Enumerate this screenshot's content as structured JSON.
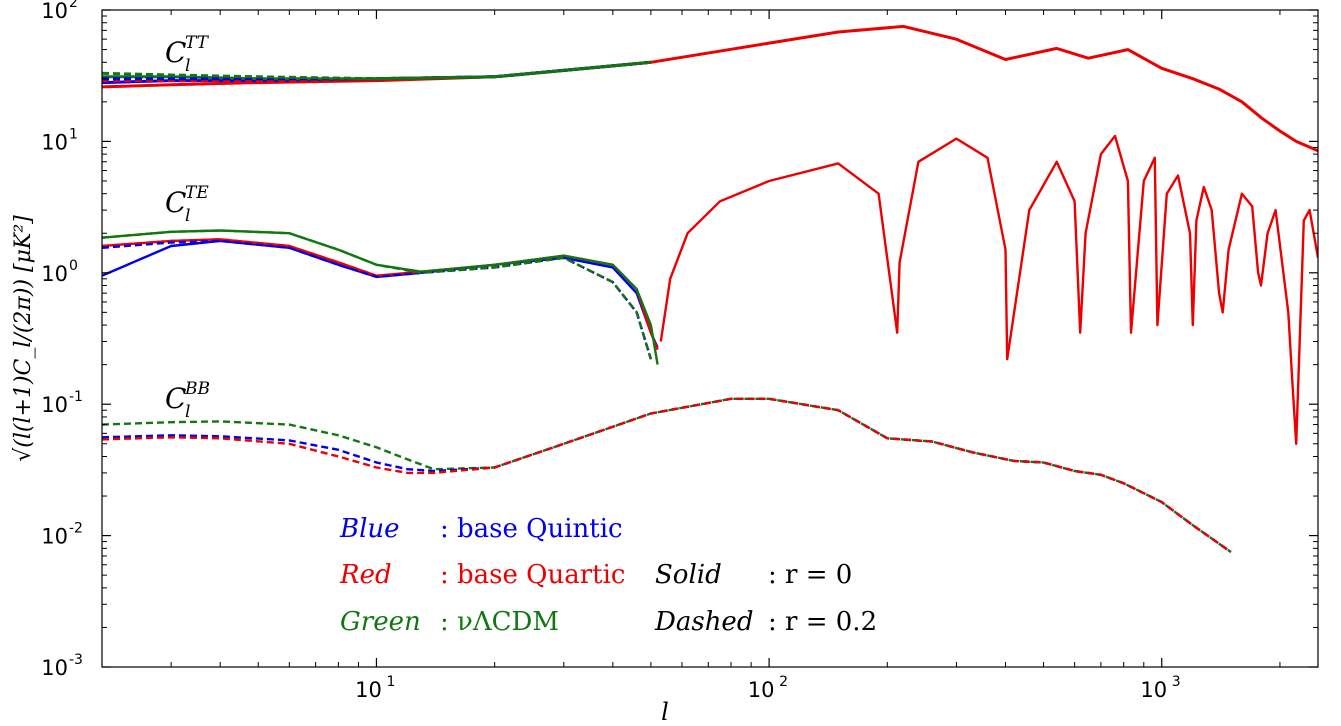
{
  "chart_data": {
    "type": "line",
    "xlabel": "l",
    "ylabel": "√(l(l+1)C_l/(2π)) [μK²]",
    "xscale": "log",
    "yscale": "log",
    "xlim": [
      2,
      2500
    ],
    "ylim": [
      0.001,
      100
    ],
    "grid": false,
    "x_ticks": [
      {
        "base": "10",
        "exp": "1",
        "value": 10
      },
      {
        "base": "10",
        "exp": "2",
        "value": 100
      },
      {
        "base": "10",
        "exp": "3",
        "value": 1000
      }
    ],
    "y_ticks": [
      {
        "base": "10",
        "exp": "-3",
        "value": 0.001
      },
      {
        "base": "10",
        "exp": "-2",
        "value": 0.01
      },
      {
        "base": "10",
        "exp": "-1",
        "value": 0.1
      },
      {
        "base": "10",
        "exp": "0",
        "value": 1
      },
      {
        "base": "10",
        "exp": "1",
        "value": 10
      },
      {
        "base": "10",
        "exp": "2",
        "value": 100
      }
    ],
    "curve_labels": [
      {
        "main": "C",
        "sub": "l",
        "sup": "TT"
      },
      {
        "main": "C",
        "sub": "l",
        "sup": "TE"
      },
      {
        "main": "C",
        "sub": "l",
        "sup": "BB"
      }
    ],
    "legend": {
      "colors": [
        {
          "word": "Blue",
          "desc": ": base Quintic",
          "color": "#0000ee"
        },
        {
          "word": "Red",
          "desc": ": base Quartic",
          "color": "#ee0000"
        },
        {
          "word": "Green",
          "desc": ": νΛCDM",
          "color": "#117711"
        }
      ],
      "styles": [
        {
          "word": "Solid",
          "desc": ": r = 0"
        },
        {
          "word": "Dashed",
          "desc": ": r = 0.2"
        }
      ]
    },
    "series": [
      {
        "group": "TT",
        "color": "#ee0000",
        "style": "solid",
        "x": [
          2,
          3,
          5,
          10,
          20,
          50,
          100,
          150,
          220,
          300,
          400,
          540,
          650,
          820,
          1000,
          1200,
          1400,
          1600,
          1800,
          2000,
          2200,
          2500
        ],
        "y": [
          26,
          27,
          28,
          29,
          31,
          40,
          56,
          68,
          75,
          60,
          42,
          51,
          43,
          50,
          36,
          30,
          25,
          20,
          15,
          12,
          10,
          8.5
        ]
      },
      {
        "group": "TT",
        "color": "#0000ee",
        "style": "solid",
        "x": [
          2,
          3,
          5,
          10,
          20,
          50
        ],
        "y": [
          28,
          29,
          29,
          30,
          31,
          40
        ]
      },
      {
        "group": "TT",
        "color": "#117711",
        "style": "solid",
        "x": [
          2,
          3,
          5,
          10,
          20,
          50
        ],
        "y": [
          31,
          31,
          30,
          30,
          31,
          40
        ]
      },
      {
        "group": "TT",
        "color": "#ee0000",
        "style": "dashed",
        "x": [
          2,
          3,
          5,
          10,
          20,
          50
        ],
        "y": [
          29,
          29,
          29,
          30,
          31,
          40
        ]
      },
      {
        "group": "TT",
        "color": "#0000ee",
        "style": "dashed",
        "x": [
          2,
          3,
          5,
          10,
          20,
          50
        ],
        "y": [
          30,
          30,
          30,
          30,
          31,
          40
        ]
      },
      {
        "group": "TT",
        "color": "#117711",
        "style": "dashed",
        "x": [
          2,
          3,
          5,
          10,
          20,
          50
        ],
        "y": [
          33,
          32,
          31,
          30,
          31,
          40
        ]
      },
      {
        "group": "TE",
        "color": "#0000ee",
        "style": "solid",
        "x": [
          2,
          3,
          4,
          6,
          8,
          10,
          13,
          20,
          30,
          40,
          46,
          50,
          52
        ],
        "y": [
          0.95,
          1.6,
          1.75,
          1.55,
          1.15,
          0.93,
          1.0,
          1.15,
          1.3,
          1.1,
          0.7,
          0.35,
          0.27
        ]
      },
      {
        "group": "TE",
        "color": "#ee0000",
        "style": "solid",
        "x": [
          2,
          3,
          4,
          6,
          8,
          10,
          13,
          20,
          30,
          40,
          46,
          50,
          52
        ],
        "y": [
          1.6,
          1.75,
          1.8,
          1.6,
          1.2,
          0.95,
          1.02,
          1.15,
          1.35,
          1.15,
          0.75,
          0.35,
          0.26
        ]
      },
      {
        "group": "TE",
        "color": "#117711",
        "style": "solid",
        "x": [
          2,
          3,
          4,
          6,
          8,
          10,
          13,
          20,
          30,
          40,
          46,
          50,
          52
        ],
        "y": [
          1.85,
          2.05,
          2.1,
          2.0,
          1.5,
          1.15,
          1.02,
          1.15,
          1.35,
          1.15,
          0.75,
          0.4,
          0.2
        ]
      },
      {
        "group": "TE",
        "color": "#ee0000",
        "style": "dashed",
        "x": [
          2,
          3,
          4,
          6,
          8,
          10,
          13,
          20,
          30,
          40,
          46,
          50
        ],
        "y": [
          1.6,
          1.75,
          1.8,
          1.6,
          1.2,
          0.95,
          1.0,
          1.1,
          1.3,
          0.85,
          0.5,
          0.22
        ]
      },
      {
        "group": "TE",
        "color": "#0000ee",
        "style": "dashed",
        "x": [
          2,
          3,
          4,
          6,
          8,
          10,
          13,
          20,
          30,
          40,
          46,
          50
        ],
        "y": [
          1.55,
          1.7,
          1.75,
          1.55,
          1.15,
          0.93,
          1.0,
          1.1,
          1.3,
          0.85,
          0.5,
          0.22
        ]
      },
      {
        "group": "TE",
        "color": "#117711",
        "style": "dashed",
        "x": [
          2,
          3,
          4,
          6,
          8,
          10,
          13,
          20,
          30,
          40,
          46,
          50
        ],
        "y": [
          1.85,
          2.05,
          2.1,
          2.0,
          1.5,
          1.15,
          1.0,
          1.1,
          1.3,
          0.85,
          0.5,
          0.22
        ]
      },
      {
        "group": "TE",
        "color": "#ee0000",
        "style": "solid",
        "x": [
          53,
          56,
          62,
          75,
          100,
          150,
          190,
          212,
          215,
          240,
          300,
          360,
          400,
          404,
          460,
          540,
          600,
          620,
          640,
          700,
          760,
          820,
          835,
          900,
          960,
          975,
          1030,
          1100,
          1180,
          1200,
          1225,
          1280,
          1340,
          1400,
          1430,
          1480,
          1600,
          1700,
          1760,
          1790,
          1860,
          1950,
          2100,
          2150,
          2200,
          2300,
          2380,
          2500
        ],
        "y": [
          0.3,
          0.9,
          2.0,
          3.5,
          5.0,
          6.8,
          4.0,
          0.35,
          1.2,
          7.0,
          10.5,
          7.5,
          1.5,
          0.22,
          3.0,
          7.0,
          3.5,
          0.35,
          2.0,
          8.0,
          11.0,
          5.0,
          0.35,
          5.0,
          7.5,
          0.4,
          4.0,
          5.5,
          2.0,
          0.4,
          2.5,
          4.5,
          3.0,
          0.7,
          0.5,
          1.5,
          4.0,
          3.2,
          1.0,
          0.8,
          2.0,
          3.0,
          0.5,
          0.15,
          0.05,
          2.5,
          3.0,
          1.3
        ]
      },
      {
        "group": "BB",
        "color": "#117711",
        "style": "dashed",
        "x": [
          2,
          3,
          4,
          6,
          8,
          10,
          12,
          14,
          20,
          30,
          50,
          80,
          100,
          150,
          200,
          260,
          330,
          420,
          500,
          600,
          700,
          800,
          1000,
          1200,
          1500
        ],
        "y": [
          0.07,
          0.073,
          0.074,
          0.07,
          0.058,
          0.047,
          0.038,
          0.032,
          0.033,
          0.05,
          0.085,
          0.11,
          0.11,
          0.09,
          0.055,
          0.052,
          0.043,
          0.037,
          0.036,
          0.031,
          0.029,
          0.025,
          0.018,
          0.012,
          0.0075
        ]
      },
      {
        "group": "BB",
        "color": "#0000ee",
        "style": "dashed",
        "x": [
          2,
          3,
          4,
          6,
          8,
          10,
          12,
          14,
          20,
          30,
          50,
          80,
          100,
          150,
          200,
          260,
          330,
          420,
          500,
          600,
          700,
          800,
          1000,
          1200,
          1500
        ],
        "y": [
          0.056,
          0.058,
          0.057,
          0.053,
          0.045,
          0.036,
          0.032,
          0.031,
          0.033,
          0.05,
          0.085,
          0.11,
          0.11,
          0.09,
          0.055,
          0.052,
          0.043,
          0.037,
          0.036,
          0.031,
          0.029,
          0.025,
          0.018,
          0.012,
          0.0075
        ]
      },
      {
        "group": "BB",
        "color": "#ee0000",
        "style": "dashed",
        "x": [
          2,
          3,
          4,
          6,
          8,
          10,
          12,
          14,
          20,
          30,
          50,
          80,
          100,
          150,
          200,
          260,
          330,
          420,
          500,
          600,
          700,
          800,
          1000,
          1200,
          1500
        ],
        "y": [
          0.054,
          0.056,
          0.055,
          0.05,
          0.04,
          0.033,
          0.03,
          0.03,
          0.033,
          0.05,
          0.085,
          0.11,
          0.11,
          0.09,
          0.055,
          0.052,
          0.043,
          0.037,
          0.036,
          0.031,
          0.029,
          0.025,
          0.018,
          0.012,
          0.0075
        ]
      }
    ]
  }
}
